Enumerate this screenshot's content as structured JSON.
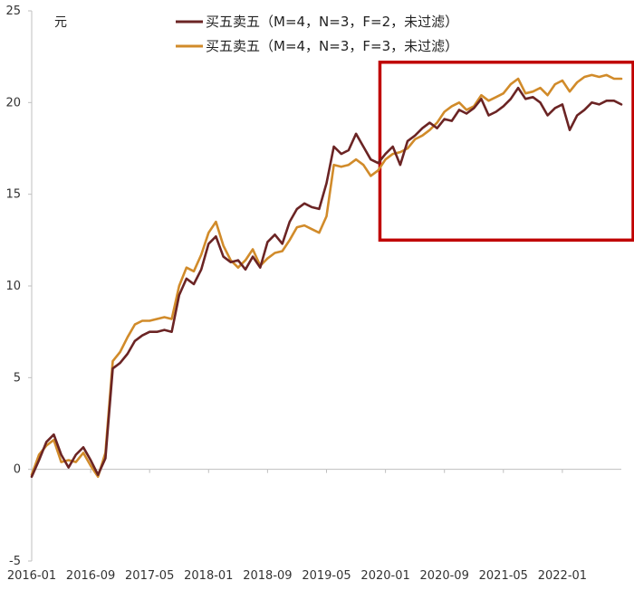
{
  "chart_data": {
    "type": "line",
    "title": "",
    "xlabel": "",
    "ylabel": "",
    "unit": "元",
    "ylim": [
      -5,
      25
    ],
    "yticks": [
      -5,
      0,
      5,
      10,
      15,
      20,
      25
    ],
    "xlim": [
      "2016-01",
      "2022-09"
    ],
    "xticks": [
      "2016-01",
      "2016-09",
      "2017-05",
      "2018-01",
      "2018-09",
      "2019-05",
      "2020-01",
      "2020-09",
      "2021-05",
      "2022-01"
    ],
    "grid": false,
    "legend_position": "top",
    "highlight_box": {
      "x_range": [
        "2019-12",
        "2022-09"
      ],
      "y_range": [
        12.5,
        22.2
      ],
      "color": "#C00000"
    },
    "series": [
      {
        "name": "买五卖五（M=4，N=3，F=2，未过滤）",
        "color": "#6B2424",
        "x": [
          "2016-01",
          "2016-02",
          "2016-03",
          "2016-04",
          "2016-05",
          "2016-06",
          "2016-07",
          "2016-08",
          "2016-09",
          "2016-10",
          "2016-11",
          "2016-12",
          "2017-01",
          "2017-02",
          "2017-03",
          "2017-04",
          "2017-05",
          "2017-06",
          "2017-07",
          "2017-08",
          "2017-09",
          "2017-10",
          "2017-11",
          "2017-12",
          "2018-01",
          "2018-02",
          "2018-03",
          "2018-04",
          "2018-05",
          "2018-06",
          "2018-07",
          "2018-08",
          "2018-09",
          "2018-10",
          "2018-11",
          "2018-12",
          "2019-01",
          "2019-02",
          "2019-03",
          "2019-04",
          "2019-05",
          "2019-06",
          "2019-07",
          "2019-08",
          "2019-09",
          "2019-10",
          "2019-11",
          "2019-12",
          "2020-01",
          "2020-02",
          "2020-03",
          "2020-04",
          "2020-05",
          "2020-06",
          "2020-07",
          "2020-08",
          "2020-09",
          "2020-10",
          "2020-11",
          "2020-12",
          "2021-01",
          "2021-02",
          "2021-03",
          "2021-04",
          "2021-05",
          "2021-06",
          "2021-07",
          "2021-08",
          "2021-09",
          "2021-10",
          "2021-11",
          "2021-12",
          "2022-01",
          "2022-02",
          "2022-03",
          "2022-04",
          "2022-05",
          "2022-06",
          "2022-07",
          "2022-08",
          "2022-09"
        ],
        "values": [
          -0.4,
          0.5,
          1.5,
          1.9,
          0.8,
          0.1,
          0.8,
          1.2,
          0.5,
          -0.3,
          0.6,
          5.5,
          5.8,
          6.3,
          7.0,
          7.3,
          7.5,
          7.5,
          7.6,
          7.5,
          9.5,
          10.4,
          10.1,
          10.9,
          12.3,
          12.7,
          11.6,
          11.3,
          11.4,
          10.9,
          11.6,
          11.0,
          12.4,
          12.8,
          12.3,
          13.5,
          14.2,
          14.5,
          14.3,
          14.2,
          15.6,
          17.6,
          17.2,
          17.4,
          18.3,
          17.6,
          16.9,
          16.7,
          17.2,
          17.6,
          16.6,
          17.9,
          18.2,
          18.6,
          18.9,
          18.6,
          19.1,
          19.0,
          19.6,
          19.4,
          19.7,
          20.2,
          19.3,
          19.5,
          19.8,
          20.2,
          20.8,
          20.2,
          20.3,
          20.0,
          19.3,
          19.7,
          19.9,
          18.5,
          19.3,
          19.6,
          20.0,
          19.9,
          20.1,
          20.1,
          19.9
        ]
      },
      {
        "name": "买五卖五（M=4，N=3，F=3，未过滤）",
        "color": "#D18B2A",
        "x": [
          "2016-01",
          "2016-02",
          "2016-03",
          "2016-04",
          "2016-05",
          "2016-06",
          "2016-07",
          "2016-08",
          "2016-09",
          "2016-10",
          "2016-11",
          "2016-12",
          "2017-01",
          "2017-02",
          "2017-03",
          "2017-04",
          "2017-05",
          "2017-06",
          "2017-07",
          "2017-08",
          "2017-09",
          "2017-10",
          "2017-11",
          "2017-12",
          "2018-01",
          "2018-02",
          "2018-03",
          "2018-04",
          "2018-05",
          "2018-06",
          "2018-07",
          "2018-08",
          "2018-09",
          "2018-10",
          "2018-11",
          "2018-12",
          "2019-01",
          "2019-02",
          "2019-03",
          "2019-04",
          "2019-05",
          "2019-06",
          "2019-07",
          "2019-08",
          "2019-09",
          "2019-10",
          "2019-11",
          "2019-12",
          "2020-01",
          "2020-02",
          "2020-03",
          "2020-04",
          "2020-05",
          "2020-06",
          "2020-07",
          "2020-08",
          "2020-09",
          "2020-10",
          "2020-11",
          "2020-12",
          "2021-01",
          "2021-02",
          "2021-03",
          "2021-04",
          "2021-05",
          "2021-06",
          "2021-07",
          "2021-08",
          "2021-09",
          "2021-10",
          "2021-11",
          "2021-12",
          "2022-01",
          "2022-02",
          "2022-03",
          "2022-04",
          "2022-05",
          "2022-06",
          "2022-07",
          "2022-08",
          "2022-09"
        ],
        "values": [
          -0.3,
          0.8,
          1.3,
          1.6,
          0.4,
          0.5,
          0.4,
          0.9,
          0.2,
          -0.4,
          0.9,
          5.9,
          6.4,
          7.2,
          7.9,
          8.1,
          8.1,
          8.2,
          8.3,
          8.2,
          10.0,
          11.0,
          10.8,
          11.7,
          12.9,
          13.5,
          12.2,
          11.4,
          11.0,
          11.4,
          12.0,
          11.1,
          11.5,
          11.8,
          11.9,
          12.5,
          13.2,
          13.3,
          13.1,
          12.9,
          13.8,
          16.6,
          16.5,
          16.6,
          16.9,
          16.6,
          16.0,
          16.3,
          16.9,
          17.2,
          17.3,
          17.5,
          18.0,
          18.2,
          18.5,
          18.9,
          19.5,
          19.8,
          20.0,
          19.6,
          19.8,
          20.4,
          20.1,
          20.3,
          20.5,
          21.0,
          21.3,
          20.5,
          20.6,
          20.8,
          20.4,
          21.0,
          21.2,
          20.6,
          21.1,
          21.4,
          21.5,
          21.4,
          21.5,
          21.3,
          21.3
        ]
      }
    ]
  }
}
